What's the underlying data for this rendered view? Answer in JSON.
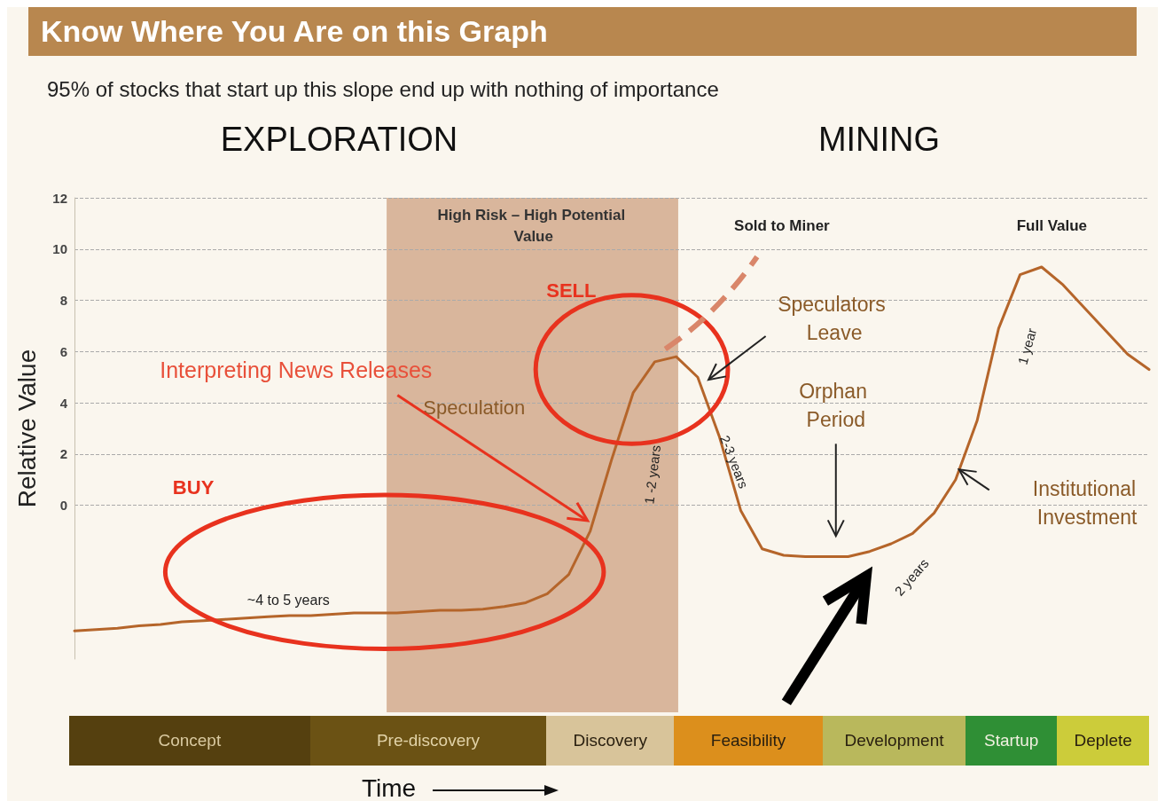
{
  "chart_data": [
    {
      "type": "line",
      "title": "Know Where You Are on this Graph",
      "subtitle": "95% of stocks that start up this slope end up with nothing of importance",
      "ylabel": "Relative Value",
      "categories": [
        null,
        null,
        null,
        null,
        null,
        null,
        null,
        null,
        null,
        null,
        null,
        null,
        null,
        null,
        null,
        null,
        null,
        null,
        null,
        null,
        null,
        null,
        null,
        null,
        null,
        null,
        null,
        null,
        null,
        null,
        null,
        null,
        null,
        null,
        null,
        null,
        null,
        null,
        null,
        null,
        null,
        null,
        null,
        null,
        null,
        null,
        null,
        null,
        null,
        null,
        null
      ],
      "series": [
        {
          "color": "#b5652a",
          "values": [
            -4.9,
            -4.85,
            -4.8,
            -4.7,
            -4.65,
            -4.55,
            -4.5,
            -4.45,
            -4.4,
            -4.35,
            -4.3,
            -4.3,
            -4.25,
            -4.2,
            -4.2,
            -4.2,
            -4.15,
            -4.1,
            -4.1,
            -4.05,
            -3.95,
            -3.8,
            -3.45,
            -2.7,
            -1.0,
            1.8,
            4.4,
            5.6,
            5.8,
            5.0,
            2.7,
            -0.2,
            -1.7,
            -1.95,
            -2.0,
            -2.0,
            -2.0,
            -1.8,
            -1.5,
            -1.1,
            -0.3,
            1.0,
            3.3,
            6.9,
            9.0,
            9.3,
            8.6,
            7.7,
            6.8,
            5.9,
            5.3
          ]
        }
      ],
      "ylim": [
        -6,
        12
      ],
      "yticks": [
        0,
        2,
        4,
        6,
        8,
        10,
        12
      ],
      "tick_labels": "y",
      "grid": "y",
      "marker": "none",
      "line_style": "solid",
      "annotations": [
        "EXPLORATION",
        "MINING",
        "High Risk – High Potential Value",
        "Sold to Miner",
        "Full Value",
        "SELL",
        "BUY",
        "Interpreting News Releases",
        "Speculation",
        "Speculators Leave",
        "Orphan Period",
        "Institutional Investment",
        "~4 to 5 years",
        "1 -2 years",
        "2-3 years",
        "2 years",
        "1 year"
      ]
    },
    {
      "type": "other",
      "xlabel": "Time",
      "annotations": [
        "Concept",
        "Pre-discovery",
        "Discovery",
        "Feasibility",
        "Development",
        "Startup",
        "Deplete"
      ]
    }
  ]
}
